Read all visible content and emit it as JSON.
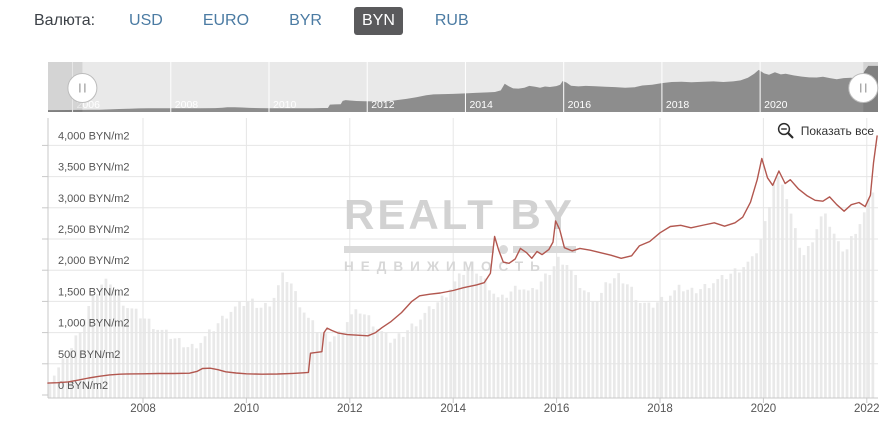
{
  "currency_bar": {
    "label": "Валюта:",
    "options": [
      {
        "label": "USD",
        "active": false
      },
      {
        "label": "EURO",
        "active": false
      },
      {
        "label": "BYR",
        "active": false
      },
      {
        "label": "BYN",
        "active": true
      },
      {
        "label": "RUB",
        "active": false
      }
    ]
  },
  "controls": {
    "show_all_label": "Показать все"
  },
  "watermark": {
    "title": "REALT BY",
    "subtitle": "НЕДВИЖИМОСТЬ"
  },
  "colors": {
    "link_blue": "#4b7ba3",
    "active_tab_bg": "#5a5a5c",
    "grid": "#e6e6e6",
    "axis": "#c9c9c9",
    "tick_label": "#555555",
    "column_fill": "#e9e9e9",
    "nav_bg": "#e9e9e9",
    "nav_series": "#8d8d8d",
    "nav_label": "#ffffff",
    "nav_mask": "rgba(0,0,0,0.09)",
    "handle_border": "#bcbcbc",
    "handle_grip": "#9a9a9a"
  },
  "chart_data": {
    "type": "line",
    "title": "",
    "xlabel": "",
    "ylabel": "BYN/m2",
    "grid": true,
    "y_axis": {
      "tick_values": [
        0,
        500,
        1000,
        1500,
        2000,
        2500,
        3000,
        3500,
        4000
      ],
      "labels": [
        "0 BYN/m2",
        "500 BYN/m2",
        "1,000 BYN/m2",
        "1,500 BYN/m2",
        "2,000 BYN/m2",
        "2,500 BYN/m2",
        "3,000 BYN/m2",
        "3,500 BYN/m2",
        "4,000 BYN/m2"
      ],
      "range": [
        0,
        4440
      ]
    },
    "x_axis": {
      "tick_values": [
        2008,
        2010,
        2012,
        2014,
        2016,
        2018,
        2020,
        2022
      ],
      "labels": [
        "2008",
        "2010",
        "2012",
        "2014",
        "2016",
        "2018",
        "2020",
        "2022"
      ],
      "range": [
        2006.16,
        2022.2
      ]
    },
    "series": [
      {
        "name": "price-byn-per-m2",
        "type": "line",
        "color": "#b2574f",
        "points": [
          [
            2006.16,
            190
          ],
          [
            2006.35,
            197
          ],
          [
            2006.55,
            210
          ],
          [
            2006.75,
            238
          ],
          [
            2006.95,
            272
          ],
          [
            2007.15,
            300
          ],
          [
            2007.35,
            322
          ],
          [
            2007.55,
            333
          ],
          [
            2007.75,
            338
          ],
          [
            2008.0,
            340
          ],
          [
            2008.3,
            345
          ],
          [
            2008.6,
            344
          ],
          [
            2008.9,
            350
          ],
          [
            2009.05,
            380
          ],
          [
            2009.15,
            425
          ],
          [
            2009.3,
            430
          ],
          [
            2009.45,
            405
          ],
          [
            2009.6,
            372
          ],
          [
            2009.8,
            352
          ],
          [
            2010.0,
            340
          ],
          [
            2010.3,
            334
          ],
          [
            2010.6,
            336
          ],
          [
            2010.9,
            346
          ],
          [
            2011.1,
            356
          ],
          [
            2011.2,
            362
          ],
          [
            2011.24,
            670
          ],
          [
            2011.35,
            682
          ],
          [
            2011.46,
            694
          ],
          [
            2011.5,
            1000
          ],
          [
            2011.56,
            1072
          ],
          [
            2011.65,
            1035
          ],
          [
            2011.78,
            992
          ],
          [
            2011.95,
            968
          ],
          [
            2012.15,
            958
          ],
          [
            2012.35,
            948
          ],
          [
            2012.5,
            1000
          ],
          [
            2012.62,
            1078
          ],
          [
            2012.8,
            1180
          ],
          [
            2013.0,
            1320
          ],
          [
            2013.2,
            1500
          ],
          [
            2013.35,
            1590
          ],
          [
            2013.55,
            1615
          ],
          [
            2013.75,
            1635
          ],
          [
            2014.0,
            1675
          ],
          [
            2014.2,
            1720
          ],
          [
            2014.45,
            1765
          ],
          [
            2014.6,
            1800
          ],
          [
            2014.72,
            1950
          ],
          [
            2014.8,
            2540
          ],
          [
            2014.88,
            2320
          ],
          [
            2014.97,
            2130
          ],
          [
            2015.08,
            2110
          ],
          [
            2015.2,
            2180
          ],
          [
            2015.3,
            2350
          ],
          [
            2015.42,
            2280
          ],
          [
            2015.52,
            2190
          ],
          [
            2015.62,
            2300
          ],
          [
            2015.72,
            2250
          ],
          [
            2015.85,
            2330
          ],
          [
            2015.93,
            2450
          ],
          [
            2015.98,
            2790
          ],
          [
            2016.06,
            2650
          ],
          [
            2016.15,
            2360
          ],
          [
            2016.3,
            2310
          ],
          [
            2016.45,
            2350
          ],
          [
            2016.65,
            2320
          ],
          [
            2016.85,
            2280
          ],
          [
            2017.05,
            2240
          ],
          [
            2017.25,
            2190
          ],
          [
            2017.45,
            2230
          ],
          [
            2017.6,
            2390
          ],
          [
            2017.8,
            2460
          ],
          [
            2018.0,
            2600
          ],
          [
            2018.2,
            2700
          ],
          [
            2018.4,
            2720
          ],
          [
            2018.6,
            2680
          ],
          [
            2018.85,
            2725
          ],
          [
            2019.05,
            2760
          ],
          [
            2019.25,
            2705
          ],
          [
            2019.45,
            2760
          ],
          [
            2019.6,
            2850
          ],
          [
            2019.75,
            3090
          ],
          [
            2019.88,
            3450
          ],
          [
            2019.97,
            3790
          ],
          [
            2020.08,
            3480
          ],
          [
            2020.18,
            3360
          ],
          [
            2020.3,
            3590
          ],
          [
            2020.42,
            3390
          ],
          [
            2020.52,
            3450
          ],
          [
            2020.68,
            3300
          ],
          [
            2020.85,
            3190
          ],
          [
            2021.0,
            3120
          ],
          [
            2021.15,
            3105
          ],
          [
            2021.28,
            3175
          ],
          [
            2021.42,
            3050
          ],
          [
            2021.56,
            2945
          ],
          [
            2021.7,
            3050
          ],
          [
            2021.85,
            3085
          ],
          [
            2021.97,
            3020
          ],
          [
            2022.07,
            3200
          ],
          [
            2022.13,
            3720
          ],
          [
            2022.2,
            4150
          ]
        ]
      },
      {
        "name": "listing-volume-columns",
        "type": "column",
        "color": "#e9e9e9",
        "axis": "hidden",
        "note": "values read against left axis pixel scale",
        "points": [
          [
            2006.2,
            250
          ],
          [
            2006.4,
            460
          ],
          [
            2006.6,
            720
          ],
          [
            2006.8,
            1100
          ],
          [
            2007.0,
            1500
          ],
          [
            2007.2,
            1760
          ],
          [
            2007.35,
            1850
          ],
          [
            2007.5,
            1620
          ],
          [
            2007.7,
            1420
          ],
          [
            2007.9,
            1300
          ],
          [
            2008.1,
            1190
          ],
          [
            2008.3,
            1050
          ],
          [
            2008.5,
            950
          ],
          [
            2008.7,
            860
          ],
          [
            2008.9,
            760
          ],
          [
            2009.1,
            850
          ],
          [
            2009.3,
            1000
          ],
          [
            2009.5,
            1200
          ],
          [
            2009.7,
            1350
          ],
          [
            2009.9,
            1450
          ],
          [
            2010.1,
            1500
          ],
          [
            2010.3,
            1400
          ],
          [
            2010.5,
            1520
          ],
          [
            2010.7,
            1900
          ],
          [
            2010.85,
            1820
          ],
          [
            2011.0,
            1520
          ],
          [
            2011.2,
            1210
          ],
          [
            2011.4,
            1010
          ],
          [
            2011.6,
            900
          ],
          [
            2011.8,
            1000
          ],
          [
            2012.0,
            1260
          ],
          [
            2012.2,
            1350
          ],
          [
            2012.4,
            1210
          ],
          [
            2012.6,
            1010
          ],
          [
            2012.8,
            860
          ],
          [
            2013.0,
            960
          ],
          [
            2013.2,
            1110
          ],
          [
            2013.4,
            1260
          ],
          [
            2013.6,
            1410
          ],
          [
            2013.8,
            1560
          ],
          [
            2014.0,
            1760
          ],
          [
            2014.2,
            1960
          ],
          [
            2014.35,
            2100
          ],
          [
            2014.5,
            1950
          ],
          [
            2014.7,
            1750
          ],
          [
            2014.9,
            1510
          ],
          [
            2015.1,
            1650
          ],
          [
            2015.3,
            1760
          ],
          [
            2015.5,
            1610
          ],
          [
            2015.7,
            1810
          ],
          [
            2015.9,
            2010
          ],
          [
            2016.05,
            2200
          ],
          [
            2016.2,
            2110
          ],
          [
            2016.4,
            1810
          ],
          [
            2016.6,
            1610
          ],
          [
            2016.8,
            1510
          ],
          [
            2017.0,
            1810
          ],
          [
            2017.2,
            1900
          ],
          [
            2017.4,
            1760
          ],
          [
            2017.6,
            1510
          ],
          [
            2017.8,
            1410
          ],
          [
            2018.0,
            1510
          ],
          [
            2018.2,
            1610
          ],
          [
            2018.4,
            1710
          ],
          [
            2018.6,
            1660
          ],
          [
            2018.8,
            1710
          ],
          [
            2019.0,
            1810
          ],
          [
            2019.2,
            1860
          ],
          [
            2019.4,
            1960
          ],
          [
            2019.6,
            2060
          ],
          [
            2019.8,
            2160
          ],
          [
            2020.0,
            2600
          ],
          [
            2020.2,
            3400
          ],
          [
            2020.35,
            3500
          ],
          [
            2020.5,
            3000
          ],
          [
            2020.65,
            2500
          ],
          [
            2020.8,
            2210
          ],
          [
            2021.0,
            2610
          ],
          [
            2021.15,
            2900
          ],
          [
            2021.3,
            2710
          ],
          [
            2021.45,
            2410
          ],
          [
            2021.6,
            2310
          ],
          [
            2021.75,
            2610
          ],
          [
            2021.9,
            2810
          ],
          [
            2022.05,
            3110
          ],
          [
            2022.18,
            3460
          ]
        ]
      }
    ],
    "navigator": {
      "x_range": [
        2005.5,
        2022.4
      ],
      "selected": [
        2006.2,
        2022.1
      ],
      "year_labels": [
        "2006",
        "2008",
        "2010",
        "2012",
        "2014",
        "2016",
        "2018",
        "2020"
      ]
    }
  }
}
